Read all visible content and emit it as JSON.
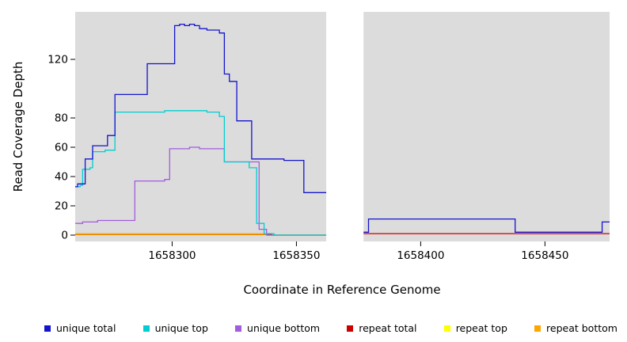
{
  "chart_data": {
    "type": "line",
    "step": true,
    "title": "",
    "xlabel": "Coordinate in Reference Genome",
    "ylabel": "Read Coverage Depth",
    "xlim": [
      1658261,
      1658476
    ],
    "ylim": [
      0,
      150
    ],
    "x_ticks": [
      1658300,
      1658350,
      1658400,
      1658450
    ],
    "y_ticks": [
      0,
      20,
      40,
      60,
      80,
      120
    ],
    "panel_bg": "#DCDCDC",
    "grid": false,
    "legend_position": "bottom",
    "gap_region": {
      "x_start": 1658362,
      "x_end": 1658377,
      "color": "#FFFFFF"
    },
    "series": [
      {
        "name": "repeat top",
        "color": "#FFFF00",
        "points": [
          [
            1658261,
            0
          ],
          [
            1658362,
            0
          ]
        ]
      },
      {
        "name": "repeat total",
        "color": "#CC0000",
        "points": [
          [
            1658261,
            0.6
          ],
          [
            1658339,
            0.6
          ],
          [
            1658340,
            0
          ],
          [
            1658370,
            1
          ],
          [
            1658476,
            1
          ]
        ]
      },
      {
        "name": "repeat bottom",
        "color": "#FFA500",
        "points": [
          [
            1658261,
            0.9
          ],
          [
            1658337,
            0.9
          ],
          [
            1658338,
            0
          ],
          [
            1658362,
            0
          ]
        ]
      },
      {
        "name": "unique bottom",
        "color": "#A25CDD",
        "points": [
          [
            1658261,
            8
          ],
          [
            1658264,
            9
          ],
          [
            1658270,
            10
          ],
          [
            1658284,
            10
          ],
          [
            1658285,
            37
          ],
          [
            1658296,
            37
          ],
          [
            1658297,
            38
          ],
          [
            1658298,
            38
          ],
          [
            1658299,
            59
          ],
          [
            1658306,
            59
          ],
          [
            1658307,
            60
          ],
          [
            1658310,
            60
          ],
          [
            1658311,
            59
          ],
          [
            1658320,
            59
          ],
          [
            1658321,
            50
          ],
          [
            1658334,
            50
          ],
          [
            1658335,
            4
          ],
          [
            1658337,
            4
          ],
          [
            1658338,
            0
          ],
          [
            1658362,
            0
          ]
        ]
      },
      {
        "name": "unique top",
        "color": "#00CED1",
        "points": [
          [
            1658261,
            33
          ],
          [
            1658263,
            34
          ],
          [
            1658264,
            45
          ],
          [
            1658266,
            45
          ],
          [
            1658267,
            46
          ],
          [
            1658268,
            57
          ],
          [
            1658272,
            57
          ],
          [
            1658273,
            58
          ],
          [
            1658276,
            58
          ],
          [
            1658277,
            84
          ],
          [
            1658296,
            84
          ],
          [
            1658297,
            85
          ],
          [
            1658313,
            85
          ],
          [
            1658314,
            84
          ],
          [
            1658318,
            84
          ],
          [
            1658319,
            81
          ],
          [
            1658320,
            81
          ],
          [
            1658321,
            50
          ],
          [
            1658330,
            50
          ],
          [
            1658331,
            46
          ],
          [
            1658333,
            46
          ],
          [
            1658334,
            8
          ],
          [
            1658336,
            8
          ],
          [
            1658337,
            1
          ],
          [
            1658340,
            1
          ],
          [
            1658341,
            0
          ],
          [
            1658362,
            0
          ]
        ]
      },
      {
        "name": "unique total",
        "color": "#1414CD",
        "points": [
          [
            1658261,
            33
          ],
          [
            1658262,
            35
          ],
          [
            1658264,
            35
          ],
          [
            1658265,
            52
          ],
          [
            1658267,
            52
          ],
          [
            1658268,
            61
          ],
          [
            1658273,
            61
          ],
          [
            1658274,
            68
          ],
          [
            1658276,
            68
          ],
          [
            1658277,
            96
          ],
          [
            1658289,
            96
          ],
          [
            1658290,
            117
          ],
          [
            1658300,
            117
          ],
          [
            1658301,
            143
          ],
          [
            1658303,
            144
          ],
          [
            1658305,
            143
          ],
          [
            1658307,
            144
          ],
          [
            1658309,
            143
          ],
          [
            1658311,
            141
          ],
          [
            1658313,
            141
          ],
          [
            1658314,
            140
          ],
          [
            1658318,
            140
          ],
          [
            1658319,
            138
          ],
          [
            1658320,
            138
          ],
          [
            1658321,
            110
          ],
          [
            1658322,
            110
          ],
          [
            1658323,
            105
          ],
          [
            1658325,
            105
          ],
          [
            1658326,
            78
          ],
          [
            1658331,
            78
          ],
          [
            1658332,
            52
          ],
          [
            1658344,
            52
          ],
          [
            1658345,
            51
          ],
          [
            1658352,
            51
          ],
          [
            1658353,
            29
          ],
          [
            1658370,
            2
          ],
          [
            1658378,
            2
          ],
          [
            1658379,
            11
          ],
          [
            1658437,
            11
          ],
          [
            1658438,
            2
          ],
          [
            1658472,
            2
          ],
          [
            1658473,
            9
          ],
          [
            1658476,
            9
          ]
        ]
      }
    ]
  },
  "legend": {
    "items": [
      {
        "label": "unique total",
        "color": "#1414CD"
      },
      {
        "label": "unique top",
        "color": "#00CED1"
      },
      {
        "label": "unique bottom",
        "color": "#A25CDD"
      },
      {
        "label": "repeat total",
        "color": "#CC0000"
      },
      {
        "label": "repeat top",
        "color": "#FFFF00"
      },
      {
        "label": "repeat bottom",
        "color": "#FFA500"
      }
    ]
  }
}
